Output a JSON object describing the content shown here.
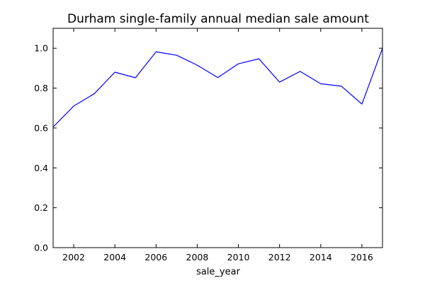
{
  "chart_data": {
    "type": "line",
    "title": "Durham single-family annual median sale amount",
    "xlabel": "sale_year",
    "ylabel": "",
    "xlim": [
      2001,
      2017
    ],
    "ylim": [
      0.0,
      1.1
    ],
    "x_ticks": [
      2002,
      2004,
      2006,
      2008,
      2010,
      2012,
      2014,
      2016
    ],
    "x_tick_labels": [
      "2002",
      "2004",
      "2006",
      "2008",
      "2010",
      "2012",
      "2014",
      "2016"
    ],
    "y_ticks": [
      0.0,
      0.2,
      0.4,
      0.6,
      0.8,
      1.0
    ],
    "y_tick_labels": [
      "0.0",
      "0.2",
      "0.4",
      "0.6",
      "0.8",
      "1.0"
    ],
    "grid": false,
    "series": [
      {
        "color": "#0000ff",
        "x": [
          2001,
          2002,
          2003,
          2004,
          2005,
          2006,
          2007,
          2008,
          2009,
          2010,
          2011,
          2012,
          2013,
          2014,
          2015,
          2016,
          2017
        ],
        "values": [
          0.605,
          0.71,
          0.772,
          0.88,
          0.852,
          0.982,
          0.965,
          0.915,
          0.853,
          0.922,
          0.947,
          0.83,
          0.884,
          0.822,
          0.81,
          0.72,
          1.0
        ]
      }
    ]
  }
}
